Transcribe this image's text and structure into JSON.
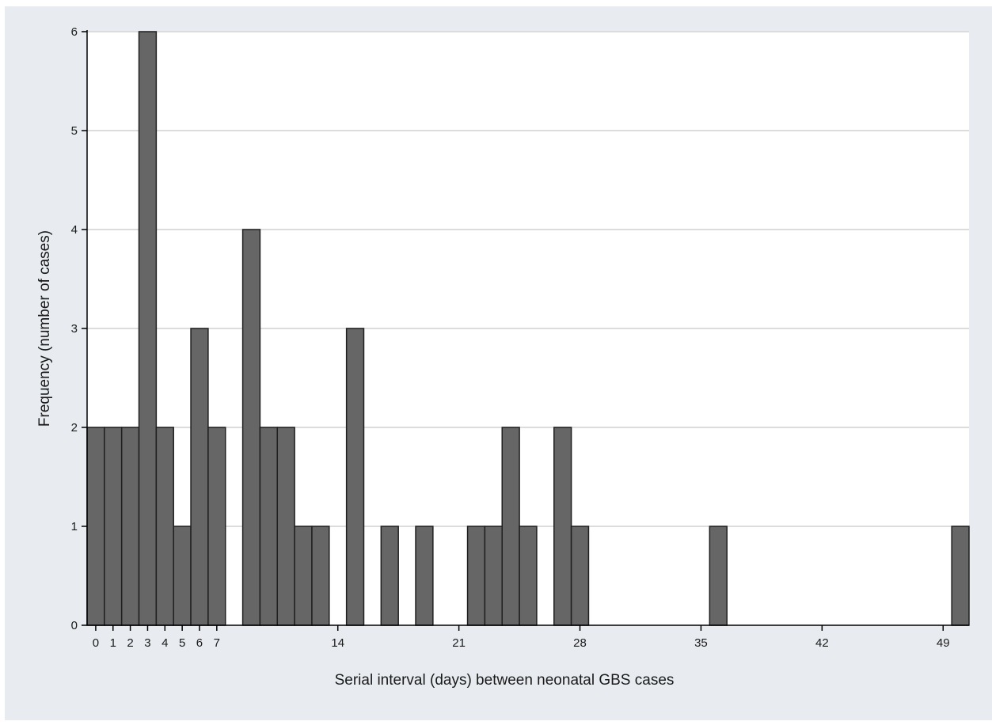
{
  "chart_data": {
    "type": "bar",
    "title": "",
    "xlabel": "Serial interval (days) between neonatal GBS cases",
    "ylabel": "Frequency (number of cases)",
    "x": [
      0,
      1,
      2,
      3,
      4,
      5,
      6,
      7,
      9,
      10,
      11,
      12,
      13,
      15,
      17,
      19,
      22,
      23,
      24,
      25,
      27,
      28,
      36,
      50
    ],
    "values": [
      2,
      2,
      2,
      6,
      2,
      1,
      3,
      2,
      4,
      2,
      2,
      1,
      1,
      3,
      1,
      1,
      1,
      1,
      2,
      1,
      2,
      1,
      1,
      1
    ],
    "xticks": [
      0,
      1,
      2,
      3,
      4,
      5,
      6,
      7,
      14,
      21,
      28,
      35,
      42,
      49
    ],
    "yticks": [
      0,
      1,
      2,
      3,
      4,
      5,
      6
    ],
    "xlim": [
      -0.5,
      50.5
    ],
    "ylim": [
      0,
      6
    ],
    "grid": true,
    "colors": {
      "bar_fill": "#666666",
      "bar_stroke": "#1f1f1f",
      "plot_background": "#ffffff",
      "outer_background": "#e8ecf0",
      "grid": "#dcdcdc",
      "axis": "#000000"
    }
  }
}
